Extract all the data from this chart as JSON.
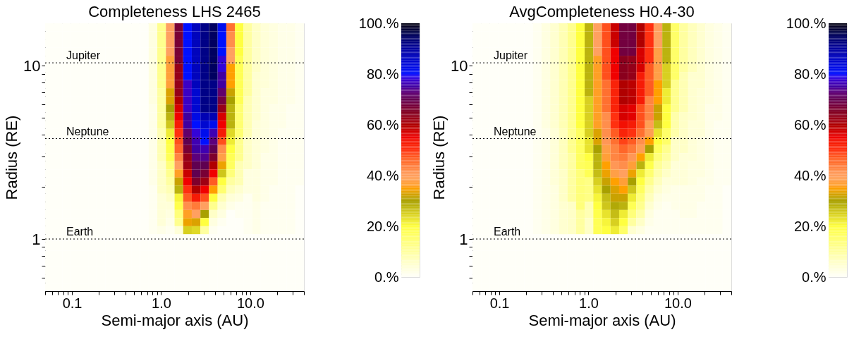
{
  "chart_data": [
    {
      "type": "heatmap",
      "title": "Completeness LHS 2465",
      "xlabel": "Semi-major axis (AU)",
      "ylabel": "Radius (RE)",
      "log": "xy",
      "xlim": [
        0.05,
        40
      ],
      "ylim": [
        0.5,
        17.6
      ],
      "xticks": [
        {
          "value": 0.05,
          "label": null
        },
        {
          "value": 0.06,
          "label": null
        },
        {
          "value": 0.07,
          "label": null
        },
        {
          "value": 0.08,
          "label": null
        },
        {
          "value": 0.09,
          "label": null
        },
        0.1,
        {
          "value": 0.2,
          "label": null
        },
        {
          "value": 0.3,
          "label": null
        },
        {
          "value": 0.4,
          "label": null
        },
        {
          "value": 0.5,
          "label": null
        },
        {
          "value": 0.6,
          "label": null
        },
        {
          "value": 0.7,
          "label": null
        },
        {
          "value": 0.8,
          "label": null
        },
        {
          "value": 0.9,
          "label": null
        },
        {
          "value": 1,
          "label": "1.0"
        },
        {
          "value": 2,
          "label": null
        },
        {
          "value": 3,
          "label": null
        },
        {
          "value": 4,
          "label": null
        },
        {
          "value": 5,
          "label": null
        },
        {
          "value": 6,
          "label": null
        },
        {
          "value": 7,
          "label": null
        },
        {
          "value": 8,
          "label": null
        },
        {
          "value": 9,
          "label": null
        },
        {
          "value": 10,
          "label": "10.0"
        },
        {
          "value": 20,
          "label": null
        },
        {
          "value": 30,
          "label": null
        },
        {
          "value": 40,
          "label": null
        }
      ],
      "yticks": [
        {
          "value": 0.6,
          "label": null
        },
        {
          "value": 0.7,
          "label": null
        },
        {
          "value": 0.8,
          "label": null
        },
        {
          "value": 0.9,
          "label": null
        },
        1,
        {
          "value": 2,
          "label": null
        },
        {
          "value": 3,
          "label": null
        },
        {
          "value": 4,
          "label": null
        },
        {
          "value": 5,
          "label": null
        },
        {
          "value": 6,
          "label": null
        },
        {
          "value": 7,
          "label": null
        },
        {
          "value": 8,
          "label": null
        },
        {
          "value": 9,
          "label": null
        },
        10
      ],
      "clim": [
        0,
        100
      ],
      "cticks": [
        {
          "value": 0,
          "label": "0.%"
        },
        {
          "value": 20,
          "label": "20.%"
        },
        {
          "value": 40,
          "label": "40.%"
        },
        {
          "value": 60,
          "label": "60.%"
        },
        {
          "value": 80,
          "label": "80.%"
        },
        {
          "value": 100,
          "label": "100.%"
        }
      ],
      "colors": [
        "#fffff8",
        "#ffffd0",
        "#ffffa0",
        "#ffff70",
        "#ffff40",
        "#d8d020",
        "#a8a000",
        "#ffa000",
        "#ffa060",
        "#ff7030",
        "#ff3010",
        "#f00000",
        "#b00000",
        "#800020",
        "#600050",
        "#4000a0",
        "#0010ff",
        "#0008d0",
        "#0000a0",
        "#000060",
        "#000010"
      ],
      "ref_lines": [
        {
          "axis": "y",
          "value": 10.4,
          "label": "Jupiter",
          "line_style": "dotted"
        },
        {
          "axis": "y",
          "value": 3.8,
          "label": "Neptune",
          "line_style": "dotted"
        },
        {
          "axis": "y",
          "value": 1.0,
          "label": "Earth",
          "line_style": "dotted"
        }
      ],
      "cells": [
        [
          0,
          0,
          0,
          0,
          0,
          0,
          0,
          0,
          0,
          0,
          0,
          0,
          3,
          12,
          40,
          67,
          80,
          87,
          92,
          95,
          82,
          45,
          20,
          10,
          6,
          4,
          3,
          2,
          2,
          1
        ],
        [
          0,
          0,
          0,
          0,
          0,
          0,
          0,
          0,
          0,
          0,
          0,
          0,
          3,
          12,
          40,
          67,
          80,
          87,
          92,
          95,
          80,
          42,
          20,
          10,
          6,
          4,
          3,
          2,
          2,
          1
        ],
        [
          0,
          0,
          0,
          0,
          0,
          0,
          0,
          0,
          0,
          0,
          0,
          0,
          3,
          12,
          40,
          67,
          80,
          87,
          92,
          95,
          80,
          42,
          20,
          10,
          6,
          4,
          3,
          2,
          2,
          1
        ],
        [
          0,
          0,
          0,
          0,
          0,
          0,
          0,
          0,
          0,
          0,
          0,
          0,
          3,
          12,
          40,
          67,
          80,
          87,
          92,
          95,
          80,
          40,
          20,
          10,
          6,
          4,
          3,
          2,
          2,
          1
        ],
        [
          0,
          0,
          0,
          0,
          0,
          0,
          0,
          0,
          0,
          0,
          0,
          0,
          3,
          12,
          37,
          67,
          80,
          87,
          92,
          95,
          78,
          40,
          18,
          10,
          6,
          4,
          3,
          2,
          2,
          1
        ],
        [
          0,
          0,
          0,
          0,
          0,
          0,
          0,
          0,
          0,
          0,
          0,
          0,
          3,
          12,
          37,
          63,
          80,
          87,
          92,
          95,
          78,
          35,
          18,
          10,
          6,
          4,
          3,
          2,
          2,
          1
        ],
        [
          0,
          0,
          0,
          0,
          0,
          0,
          0,
          0,
          0,
          0,
          0,
          0,
          3,
          12,
          37,
          63,
          80,
          87,
          92,
          95,
          75,
          35,
          18,
          10,
          5,
          4,
          3,
          2,
          2,
          1
        ],
        [
          0,
          0,
          0,
          0,
          0,
          0,
          0,
          0,
          0,
          0,
          0,
          0,
          3,
          12,
          37,
          63,
          77,
          87,
          92,
          92,
          75,
          35,
          18,
          10,
          5,
          4,
          3,
          2,
          2,
          1
        ],
        [
          0,
          0,
          0,
          0,
          0,
          0,
          0,
          0,
          0,
          0,
          0,
          0,
          3,
          10,
          33,
          63,
          77,
          85,
          92,
          92,
          72,
          32,
          18,
          10,
          5,
          3,
          3,
          2,
          2,
          1
        ],
        [
          0,
          0,
          0,
          0,
          0,
          0,
          0,
          0,
          0,
          0,
          0,
          0,
          3,
          10,
          33,
          60,
          77,
          85,
          92,
          92,
          68,
          30,
          18,
          8,
          5,
          3,
          3,
          2,
          2,
          1
        ],
        [
          0,
          0,
          0,
          0,
          0,
          0,
          0,
          0,
          0,
          0,
          0,
          0,
          2,
          10,
          30,
          57,
          77,
          85,
          92,
          92,
          63,
          28,
          15,
          8,
          5,
          3,
          2,
          2,
          1,
          1
        ],
        [
          0,
          0,
          0,
          0,
          0,
          0,
          0,
          0,
          0,
          0,
          0,
          0,
          2,
          10,
          28,
          55,
          75,
          83,
          88,
          88,
          57,
          28,
          15,
          8,
          5,
          3,
          2,
          2,
          1,
          1
        ],
        [
          0,
          0,
          0,
          0,
          0,
          0,
          0,
          0,
          0,
          0,
          0,
          0,
          2,
          10,
          26,
          53,
          75,
          80,
          85,
          82,
          55,
          28,
          15,
          8,
          4,
          3,
          2,
          2,
          1,
          1
        ],
        [
          0,
          0,
          0,
          0,
          0,
          0,
          0,
          0,
          0,
          0,
          0,
          0,
          2,
          8,
          22,
          50,
          72,
          78,
          82,
          76,
          53,
          24,
          15,
          8,
          4,
          3,
          2,
          1,
          1,
          1
        ],
        [
          0,
          0,
          0,
          0,
          0,
          0,
          0,
          0,
          0,
          0,
          0,
          0,
          2,
          8,
          20,
          48,
          70,
          76,
          80,
          73,
          48,
          22,
          12,
          6,
          4,
          3,
          2,
          1,
          1,
          1
        ],
        [
          0,
          0,
          0,
          0,
          0,
          0,
          0,
          0,
          0,
          0,
          0,
          0,
          2,
          8,
          19,
          46,
          67,
          75,
          76,
          70,
          42,
          20,
          12,
          6,
          4,
          3,
          2,
          1,
          1,
          1
        ],
        [
          0,
          0,
          0,
          0,
          0,
          0,
          0,
          0,
          0,
          0,
          0,
          0,
          2,
          8,
          18,
          43,
          63,
          73,
          74,
          66,
          38,
          18,
          12,
          6,
          4,
          2,
          2,
          1,
          1,
          1
        ],
        [
          0,
          0,
          0,
          0,
          0,
          0,
          0,
          0,
          0,
          0,
          0,
          0,
          2,
          6,
          14,
          40,
          62,
          70,
          70,
          60,
          34,
          17,
          8,
          6,
          4,
          2,
          2,
          1,
          1,
          1
        ],
        [
          0,
          0,
          0,
          0,
          0,
          0,
          0,
          0,
          0,
          0,
          0,
          0,
          2,
          6,
          12,
          36,
          58,
          70,
          67,
          55,
          26,
          14,
          8,
          3,
          3,
          2,
          2,
          1,
          1,
          1
        ],
        [
          0,
          0,
          0,
          0,
          0,
          0,
          0,
          0,
          0,
          0,
          0,
          0,
          2,
          6,
          10,
          32,
          55,
          66,
          62,
          47,
          20,
          10,
          8,
          3,
          3,
          2,
          2,
          1,
          1,
          1
        ],
        [
          0,
          0,
          0,
          0,
          0,
          0,
          0,
          0,
          0,
          0,
          0,
          0,
          1,
          6,
          8,
          28,
          50,
          60,
          55,
          35,
          15,
          7,
          5,
          3,
          3,
          2,
          1,
          1,
          1,
          0
        ],
        [
          0,
          0,
          0,
          0,
          0,
          0,
          0,
          0,
          0,
          0,
          0,
          0,
          1,
          4,
          6,
          21,
          47,
          53,
          48,
          20,
          8,
          4,
          3,
          1,
          3,
          2,
          1,
          1,
          1,
          0
        ],
        [
          0,
          0,
          0,
          0,
          0,
          0,
          0,
          0,
          0,
          0,
          0,
          0,
          1,
          4,
          4,
          19,
          42,
          44,
          40,
          12,
          5,
          2,
          1,
          1,
          2,
          1,
          1,
          1,
          1,
          0
        ],
        [
          0,
          0,
          0,
          0,
          0,
          0,
          0,
          0,
          0,
          0,
          0,
          0,
          1,
          4,
          3,
          14,
          36,
          40,
          30,
          6,
          3,
          0,
          1,
          1,
          2,
          1,
          1,
          1,
          1,
          0
        ],
        [
          0,
          0,
          0,
          0,
          0,
          0,
          0,
          0,
          0,
          0,
          0,
          0,
          1,
          4,
          2,
          12,
          34,
          33,
          20,
          3,
          1,
          0,
          0,
          1,
          2,
          1,
          1,
          1,
          1,
          0
        ],
        [
          0,
          0,
          0,
          0,
          0,
          0,
          0,
          0,
          0,
          0,
          0,
          0,
          1,
          2,
          1,
          4,
          25,
          24,
          10,
          1,
          0,
          0,
          0,
          1,
          2,
          1,
          1,
          1,
          1,
          0
        ],
        [
          0,
          0,
          0,
          0,
          0,
          0,
          0,
          0,
          0,
          0,
          0,
          0,
          0,
          0,
          0,
          0,
          0,
          0,
          0,
          0,
          0,
          0,
          0,
          0,
          0,
          0,
          0,
          0,
          0,
          0
        ],
        [
          0,
          0,
          0,
          0,
          0,
          0,
          0,
          0,
          0,
          0,
          0,
          0,
          0,
          0,
          0,
          0,
          0,
          0,
          0,
          0,
          0,
          0,
          0,
          0,
          0,
          0,
          0,
          0,
          0,
          0
        ],
        [
          0,
          0,
          0,
          0,
          0,
          0,
          0,
          0,
          0,
          0,
          0,
          0,
          0,
          0,
          0,
          0,
          0,
          0,
          0,
          0,
          0,
          0,
          0,
          0,
          0,
          0,
          0,
          0,
          0,
          0
        ],
        [
          0,
          0,
          0,
          0,
          0,
          0,
          0,
          0,
          0,
          0,
          0,
          0,
          0,
          0,
          0,
          0,
          0,
          0,
          0,
          0,
          0,
          0,
          0,
          0,
          0,
          0,
          0,
          0,
          0,
          0
        ],
        [
          0,
          0,
          0,
          0,
          0,
          0,
          0,
          0,
          0,
          0,
          0,
          0,
          0,
          0,
          0,
          0,
          0,
          0,
          0,
          0,
          0,
          0,
          0,
          0,
          0,
          0,
          0,
          0,
          0,
          0
        ],
        [
          0,
          0,
          0,
          0,
          0,
          0,
          0,
          0,
          0,
          0,
          0,
          0,
          0,
          0,
          0,
          0,
          0,
          0,
          0,
          0,
          0,
          0,
          0,
          0,
          0,
          0,
          0,
          0,
          0,
          0
        ],
        [
          0,
          0,
          0,
          0,
          0,
          0,
          0,
          0,
          0,
          0,
          0,
          0,
          0,
          0,
          0,
          0,
          0,
          0,
          0,
          0,
          0,
          0,
          0,
          0,
          0,
          0,
          0,
          0,
          0,
          0
        ]
      ]
    },
    {
      "type": "heatmap",
      "title": "AvgCompleteness H0.4-30",
      "xlabel": "Semi-major axis (AU)",
      "ylabel": "Radius (RE)",
      "log": "xy",
      "xlim": [
        0.05,
        40
      ],
      "ylim": [
        0.5,
        17.6
      ],
      "xticks": [
        {
          "value": 0.05,
          "label": null
        },
        {
          "value": 0.06,
          "label": null
        },
        {
          "value": 0.07,
          "label": null
        },
        {
          "value": 0.08,
          "label": null
        },
        {
          "value": 0.09,
          "label": null
        },
        0.1,
        {
          "value": 0.2,
          "label": null
        },
        {
          "value": 0.3,
          "label": null
        },
        {
          "value": 0.4,
          "label": null
        },
        {
          "value": 0.5,
          "label": null
        },
        {
          "value": 0.6,
          "label": null
        },
        {
          "value": 0.7,
          "label": null
        },
        {
          "value": 0.8,
          "label": null
        },
        {
          "value": 0.9,
          "label": null
        },
        {
          "value": 1,
          "label": "1.0"
        },
        {
          "value": 2,
          "label": null
        },
        {
          "value": 3,
          "label": null
        },
        {
          "value": 4,
          "label": null
        },
        {
          "value": 5,
          "label": null
        },
        {
          "value": 6,
          "label": null
        },
        {
          "value": 7,
          "label": null
        },
        {
          "value": 8,
          "label": null
        },
        {
          "value": 9,
          "label": null
        },
        {
          "value": 10,
          "label": "10.0"
        },
        {
          "value": 20,
          "label": null
        },
        {
          "value": 30,
          "label": null
        },
        {
          "value": 40,
          "label": null
        }
      ],
      "yticks": [
        {
          "value": 0.6,
          "label": null
        },
        {
          "value": 0.7,
          "label": null
        },
        {
          "value": 0.8,
          "label": null
        },
        {
          "value": 0.9,
          "label": null
        },
        1,
        {
          "value": 2,
          "label": null
        },
        {
          "value": 3,
          "label": null
        },
        {
          "value": 4,
          "label": null
        },
        {
          "value": 5,
          "label": null
        },
        {
          "value": 6,
          "label": null
        },
        {
          "value": 7,
          "label": null
        },
        {
          "value": 8,
          "label": null
        },
        {
          "value": 9,
          "label": null
        },
        10
      ],
      "clim": [
        0,
        100
      ],
      "cticks": [
        {
          "value": 0,
          "label": "0.%"
        },
        {
          "value": 20,
          "label": "20.%"
        },
        {
          "value": 40,
          "label": "40.%"
        },
        {
          "value": 60,
          "label": "60.%"
        },
        {
          "value": 80,
          "label": "80.%"
        },
        {
          "value": 100,
          "label": "100.%"
        }
      ],
      "colors": [
        "#fffff8",
        "#ffffd0",
        "#ffffa0",
        "#ffff70",
        "#ffff40",
        "#d8d020",
        "#a8a000",
        "#ffa000",
        "#ffa060",
        "#ff7030",
        "#ff3010",
        "#f00000",
        "#b00000",
        "#800020",
        "#600050",
        "#4000a0",
        "#0010ff",
        "#0008d0",
        "#0000a0",
        "#000060",
        "#000010"
      ],
      "ref_lines": [
        {
          "axis": "y",
          "value": 10.4,
          "label": "Jupiter",
          "line_style": "dotted"
        },
        {
          "axis": "y",
          "value": 3.8,
          "label": "Neptune",
          "line_style": "dotted"
        },
        {
          "axis": "y",
          "value": 1.0,
          "label": "Earth",
          "line_style": "dotted"
        }
      ],
      "cells": [
        [
          0,
          0,
          0,
          0,
          0,
          0,
          0,
          1,
          3,
          5,
          8,
          12,
          20,
          28,
          40,
          48,
          58,
          68,
          68,
          60,
          50,
          40,
          28,
          16,
          10,
          7,
          5,
          3,
          2,
          1
        ],
        [
          0,
          0,
          0,
          0,
          0,
          0,
          0,
          1,
          3,
          5,
          8,
          12,
          20,
          28,
          40,
          48,
          58,
          68,
          68,
          60,
          50,
          40,
          28,
          16,
          10,
          7,
          5,
          3,
          2,
          1
        ],
        [
          0,
          0,
          0,
          0,
          0,
          0,
          0,
          1,
          3,
          5,
          8,
          12,
          20,
          28,
          40,
          48,
          58,
          68,
          68,
          60,
          50,
          40,
          28,
          16,
          10,
          7,
          5,
          3,
          2,
          1
        ],
        [
          0,
          0,
          0,
          0,
          0,
          0,
          0,
          1,
          3,
          5,
          8,
          12,
          20,
          28,
          40,
          48,
          55,
          68,
          68,
          57,
          50,
          38,
          28,
          16,
          10,
          7,
          5,
          3,
          2,
          1
        ],
        [
          0,
          0,
          0,
          0,
          0,
          0,
          0,
          1,
          3,
          5,
          8,
          12,
          20,
          28,
          36,
          48,
          55,
          64,
          63,
          57,
          50,
          38,
          28,
          16,
          10,
          7,
          5,
          3,
          2,
          1
        ],
        [
          0,
          0,
          0,
          0,
          0,
          0,
          0,
          1,
          3,
          5,
          8,
          12,
          20,
          28,
          36,
          48,
          55,
          64,
          63,
          57,
          47,
          38,
          25,
          16,
          10,
          7,
          5,
          3,
          2,
          1
        ],
        [
          0,
          0,
          0,
          0,
          0,
          0,
          0,
          1,
          3,
          5,
          8,
          12,
          20,
          28,
          36,
          48,
          55,
          64,
          63,
          53,
          47,
          38,
          25,
          16,
          8,
          5,
          5,
          3,
          2,
          1
        ],
        [
          0,
          0,
          0,
          0,
          0,
          0,
          0,
          1,
          3,
          5,
          8,
          12,
          20,
          28,
          36,
          45,
          52,
          60,
          59,
          53,
          47,
          35,
          25,
          12,
          8,
          5,
          5,
          3,
          2,
          1
        ],
        [
          0,
          0,
          0,
          0,
          0,
          0,
          0,
          1,
          3,
          5,
          8,
          12,
          20,
          28,
          36,
          45,
          52,
          60,
          59,
          53,
          47,
          35,
          22,
          12,
          8,
          5,
          4,
          3,
          2,
          1
        ],
        [
          0,
          0,
          0,
          0,
          0,
          0,
          0,
          1,
          3,
          5,
          8,
          12,
          20,
          25,
          36,
          45,
          52,
          60,
          59,
          53,
          43,
          35,
          22,
          12,
          8,
          5,
          4,
          3,
          2,
          1
        ],
        [
          0,
          0,
          0,
          0,
          0,
          0,
          0,
          1,
          3,
          5,
          8,
          12,
          20,
          25,
          36,
          45,
          52,
          57,
          56,
          48,
          43,
          32,
          20,
          12,
          8,
          5,
          4,
          2,
          2,
          1
        ],
        [
          0,
          0,
          0,
          0,
          0,
          0,
          0,
          1,
          3,
          5,
          8,
          12,
          20,
          25,
          36,
          42,
          50,
          57,
          56,
          48,
          43,
          32,
          20,
          9,
          6,
          5,
          4,
          2,
          2,
          1
        ],
        [
          0,
          0,
          0,
          0,
          0,
          0,
          0,
          1,
          3,
          5,
          8,
          12,
          20,
          25,
          36,
          42,
          50,
          54,
          53,
          48,
          39,
          27,
          20,
          9,
          6,
          4,
          4,
          2,
          1,
          1
        ],
        [
          0,
          0,
          0,
          0,
          0,
          0,
          0,
          1,
          2,
          4,
          7,
          12,
          17,
          25,
          33,
          42,
          47,
          52,
          50,
          45,
          39,
          23,
          16,
          9,
          6,
          4,
          4,
          2,
          1,
          1
        ],
        [
          0,
          0,
          0,
          0,
          0,
          0,
          0,
          1,
          2,
          4,
          7,
          12,
          17,
          23,
          33,
          41,
          45,
          49,
          47,
          42,
          35,
          20,
          16,
          6,
          6,
          4,
          3,
          2,
          1,
          1
        ],
        [
          0,
          0,
          0,
          0,
          0,
          0,
          0,
          1,
          2,
          4,
          7,
          12,
          17,
          23,
          30,
          38,
          43,
          46,
          44,
          39,
          30,
          17,
          12,
          6,
          6,
          4,
          3,
          2,
          1,
          1
        ],
        [
          0,
          0,
          0,
          0,
          0,
          0,
          0,
          1,
          2,
          4,
          7,
          10,
          17,
          20,
          28,
          37,
          43,
          44,
          41,
          35,
          22,
          14,
          10,
          6,
          4,
          4,
          3,
          2,
          1,
          1
        ],
        [
          0,
          0,
          0,
          0,
          0,
          0,
          0,
          1,
          2,
          4,
          7,
          10,
          17,
          18,
          28,
          35,
          41,
          42,
          37,
          28,
          19,
          11,
          8,
          4,
          4,
          3,
          3,
          2,
          1,
          1
        ],
        [
          0,
          0,
          0,
          0,
          0,
          0,
          0,
          1,
          2,
          4,
          6,
          10,
          14,
          18,
          27,
          34,
          38,
          40,
          34,
          22,
          15,
          9,
          6,
          4,
          4,
          3,
          3,
          2,
          1,
          1
        ],
        [
          0,
          0,
          0,
          0,
          0,
          0,
          0,
          1,
          2,
          4,
          6,
          10,
          14,
          13,
          25,
          32,
          35,
          37,
          30,
          20,
          12,
          7,
          4,
          4,
          4,
          3,
          2,
          2,
          1,
          1
        ],
        [
          0,
          0,
          0,
          0,
          0,
          0,
          0,
          1,
          2,
          3,
          6,
          10,
          14,
          13,
          23,
          30,
          33,
          35,
          26,
          17,
          9,
          5,
          3,
          2,
          2,
          2,
          2,
          1,
          1,
          0
        ],
        [
          0,
          0,
          0,
          0,
          0,
          0,
          0,
          1,
          2,
          3,
          6,
          10,
          14,
          13,
          21,
          27,
          32,
          32,
          22,
          14,
          7,
          3,
          2,
          2,
          2,
          2,
          2,
          1,
          1,
          0
        ],
        [
          0,
          0,
          0,
          0,
          0,
          0,
          0,
          1,
          2,
          3,
          5,
          6,
          14,
          8,
          20,
          26,
          29,
          28,
          18,
          12,
          5,
          2,
          1,
          2,
          2,
          2,
          1,
          1,
          1,
          0
        ],
        [
          0,
          0,
          0,
          0,
          0,
          0,
          0,
          1,
          2,
          3,
          5,
          6,
          10,
          8,
          19,
          23,
          27,
          22,
          14,
          9,
          3,
          1,
          1,
          1,
          2,
          2,
          1,
          1,
          1,
          0
        ],
        [
          0,
          0,
          0,
          0,
          0,
          0,
          0,
          1,
          2,
          3,
          5,
          6,
          10,
          6,
          18,
          21,
          25,
          20,
          10,
          6,
          2,
          1,
          1,
          1,
          1,
          1,
          1,
          1,
          1,
          0
        ],
        [
          0,
          0,
          0,
          0,
          0,
          0,
          0,
          1,
          2,
          3,
          5,
          6,
          10,
          6,
          18,
          20,
          22,
          16,
          5,
          3,
          1,
          1,
          1,
          1,
          1,
          1,
          1,
          1,
          1,
          0
        ],
        [
          0,
          0,
          0,
          0,
          0,
          0,
          0,
          0,
          0,
          0,
          0,
          0,
          0,
          0,
          0,
          0,
          0,
          0,
          0,
          0,
          0,
          0,
          0,
          0,
          0,
          0,
          0,
          0,
          0,
          0
        ],
        [
          0,
          0,
          0,
          0,
          0,
          0,
          0,
          0,
          0,
          0,
          0,
          0,
          0,
          0,
          0,
          0,
          0,
          0,
          0,
          0,
          0,
          0,
          0,
          0,
          0,
          0,
          0,
          0,
          0,
          0
        ],
        [
          0,
          0,
          0,
          0,
          0,
          0,
          0,
          0,
          0,
          0,
          0,
          0,
          0,
          0,
          0,
          0,
          0,
          0,
          0,
          0,
          0,
          0,
          0,
          0,
          0,
          0,
          0,
          0,
          0,
          0
        ],
        [
          0,
          0,
          0,
          0,
          0,
          0,
          0,
          0,
          0,
          0,
          0,
          0,
          0,
          0,
          0,
          0,
          0,
          0,
          0,
          0,
          0,
          0,
          0,
          0,
          0,
          0,
          0,
          0,
          0,
          0
        ],
        [
          0,
          0,
          0,
          0,
          0,
          0,
          0,
          0,
          0,
          0,
          0,
          0,
          0,
          0,
          0,
          0,
          0,
          0,
          0,
          0,
          0,
          0,
          0,
          0,
          0,
          0,
          0,
          0,
          0,
          0
        ],
        [
          0,
          0,
          0,
          0,
          0,
          0,
          0,
          0,
          0,
          0,
          0,
          0,
          0,
          0,
          0,
          0,
          0,
          0,
          0,
          0,
          0,
          0,
          0,
          0,
          0,
          0,
          0,
          0,
          0,
          0
        ],
        [
          0,
          0,
          0,
          0,
          0,
          0,
          0,
          0,
          0,
          0,
          0,
          0,
          0,
          0,
          0,
          0,
          0,
          0,
          0,
          0,
          0,
          0,
          0,
          0,
          0,
          0,
          0,
          0,
          0,
          0
        ]
      ]
    }
  ]
}
